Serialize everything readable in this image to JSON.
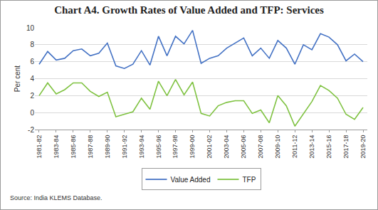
{
  "chart_data": {
    "type": "line",
    "title": "Chart A4. Growth Rates of Value Added and TFP: Services",
    "y_label": "Per cent",
    "source": "Source: India KLEMS Database.",
    "categories": [
      "1981-82",
      null,
      "1983-84",
      null,
      "1985-86",
      null,
      "1987-88",
      null,
      "1989-90",
      null,
      "1991-92",
      null,
      "1993-94",
      null,
      "1995-96",
      null,
      "1997-98",
      null,
      "1999-00",
      null,
      "2001-02",
      null,
      "2003-04",
      null,
      "2005-06",
      null,
      "2007-08",
      null,
      "2009-10",
      null,
      "2011-12",
      null,
      "2013-14",
      null,
      "2015-16",
      null,
      "2017-18",
      null,
      "2019-20"
    ],
    "series": [
      {
        "name": "Value Added",
        "color": "#4472c4",
        "values": [
          5.7,
          7.2,
          6.2,
          6.4,
          7.3,
          7.5,
          6.7,
          7.0,
          8.2,
          5.5,
          5.2,
          5.7,
          7.3,
          5.6,
          9.0,
          6.7,
          9.0,
          8.1,
          9.7,
          5.8,
          6.4,
          6.7,
          7.6,
          8.2,
          8.8,
          6.7,
          7.6,
          6.4,
          8.5,
          7.6,
          5.7,
          8.0,
          7.4,
          9.3,
          8.9,
          8.0,
          6.1,
          6.9,
          6.0
        ]
      },
      {
        "name": "TFP",
        "color": "#7fc241",
        "values": [
          2.0,
          3.5,
          2.2,
          2.7,
          3.5,
          3.5,
          2.5,
          1.9,
          2.4,
          -0.5,
          -0.2,
          0.1,
          1.7,
          0.4,
          3.7,
          2.0,
          3.9,
          2.1,
          3.6,
          -0.1,
          -0.4,
          0.8,
          1.2,
          1.4,
          1.4,
          -0.1,
          0.3,
          -1.2,
          2.0,
          0.8,
          -1.6,
          -0.2,
          1.3,
          3.2,
          2.6,
          1.7,
          -0.2,
          -0.8,
          0.6
        ]
      }
    ],
    "ylim": [
      -2,
      10
    ],
    "yticks": [
      -2,
      0,
      2,
      4,
      6,
      8,
      10
    ],
    "grid": true,
    "legend": "bottom"
  }
}
